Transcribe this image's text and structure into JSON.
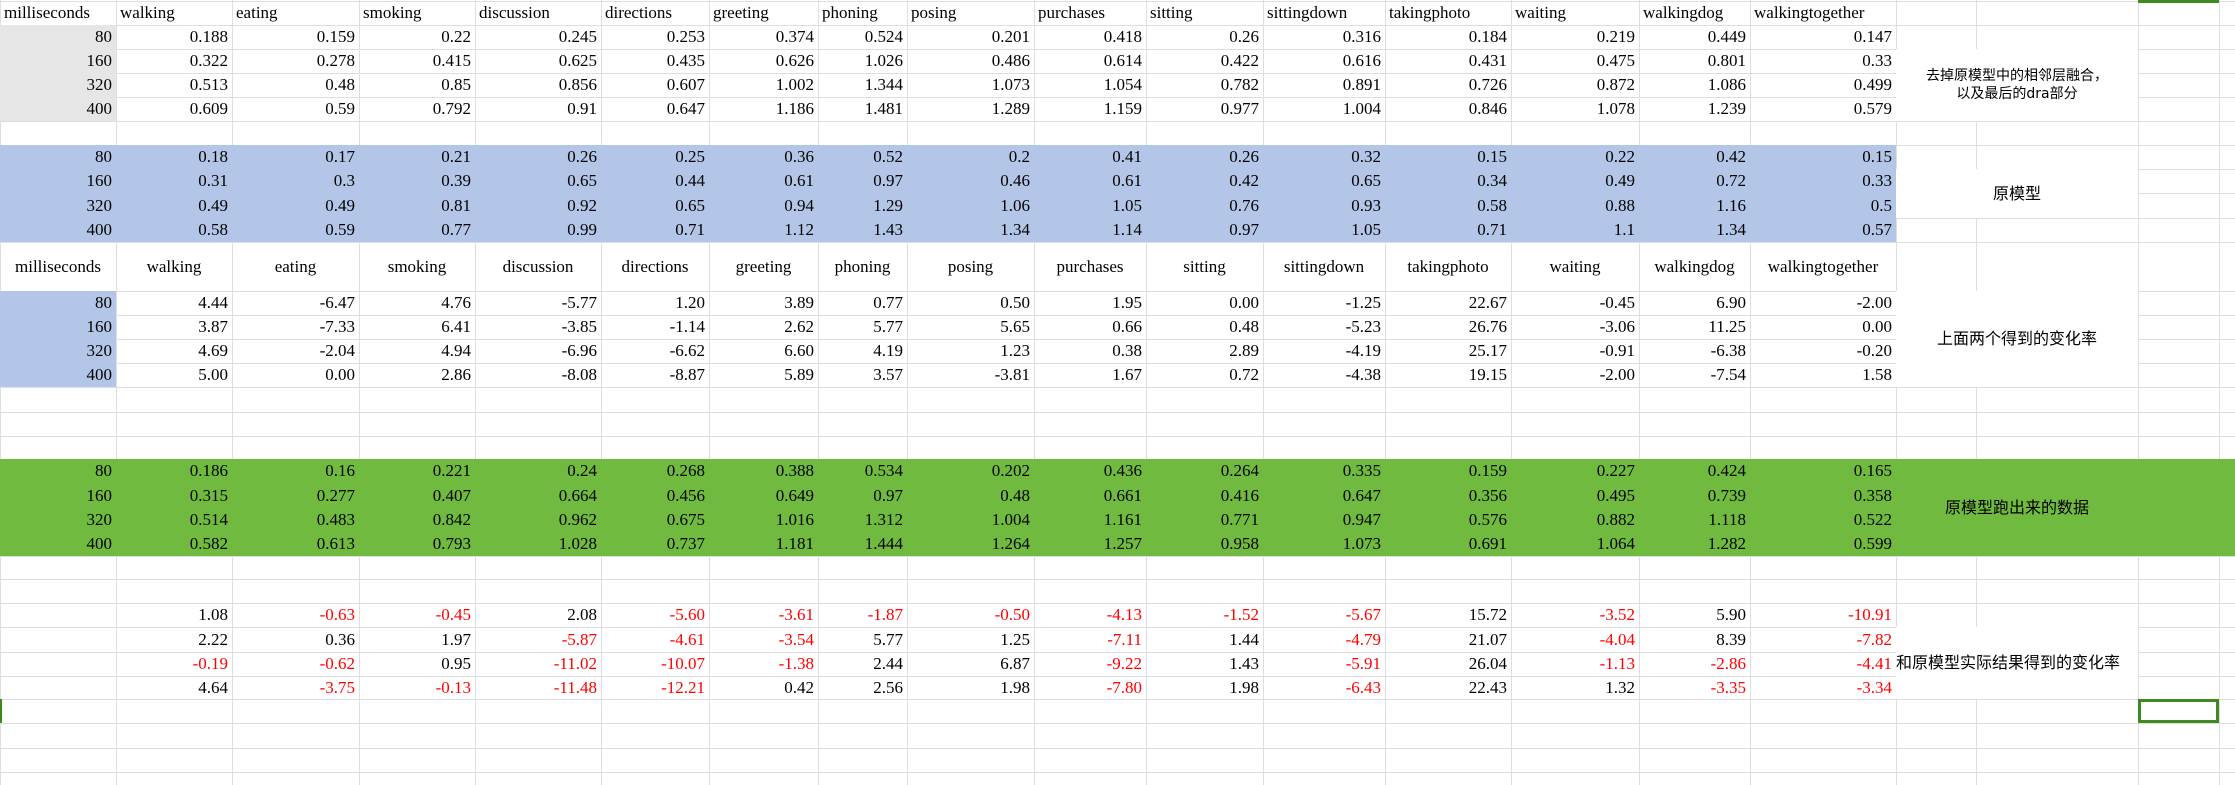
{
  "colors": {
    "grey": "#e6e6e6",
    "blue": "#b4c6e7",
    "green": "#70bb3f",
    "negative": "#ff0000",
    "selection": "#3f8a1f"
  },
  "headers": [
    "milliseconds",
    "walking",
    "eating",
    "smoking",
    "discussion",
    "directions",
    "greeting",
    "phoning",
    "posing",
    "purchases",
    "sitting",
    "sittingdown",
    "takingphoto",
    "waiting",
    "walkingdog",
    "walkingtogether"
  ],
  "row_labels": [
    "80",
    "160",
    "320",
    "400"
  ],
  "block1": [
    [
      "0.188",
      "0.159",
      "0.22",
      "0.245",
      "0.253",
      "0.374",
      "0.524",
      "0.201",
      "0.418",
      "0.26",
      "0.316",
      "0.184",
      "0.219",
      "0.449",
      "0.147"
    ],
    [
      "0.322",
      "0.278",
      "0.415",
      "0.625",
      "0.435",
      "0.626",
      "1.026",
      "0.486",
      "0.614",
      "0.422",
      "0.616",
      "0.431",
      "0.475",
      "0.801",
      "0.33"
    ],
    [
      "0.513",
      "0.48",
      "0.85",
      "0.856",
      "0.607",
      "1.002",
      "1.344",
      "1.073",
      "1.054",
      "0.782",
      "0.891",
      "0.726",
      "0.872",
      "1.086",
      "0.499"
    ],
    [
      "0.609",
      "0.59",
      "0.792",
      "0.91",
      "0.647",
      "1.186",
      "1.481",
      "1.289",
      "1.159",
      "0.977",
      "1.004",
      "0.846",
      "1.078",
      "1.239",
      "0.579"
    ]
  ],
  "block2": [
    [
      "0.18",
      "0.17",
      "0.21",
      "0.26",
      "0.25",
      "0.36",
      "0.52",
      "0.2",
      "0.41",
      "0.26",
      "0.32",
      "0.15",
      "0.22",
      "0.42",
      "0.15"
    ],
    [
      "0.31",
      "0.3",
      "0.39",
      "0.65",
      "0.44",
      "0.61",
      "0.97",
      "0.46",
      "0.61",
      "0.42",
      "0.65",
      "0.34",
      "0.49",
      "0.72",
      "0.33"
    ],
    [
      "0.49",
      "0.49",
      "0.81",
      "0.92",
      "0.65",
      "0.94",
      "1.29",
      "1.06",
      "1.05",
      "0.76",
      "0.93",
      "0.58",
      "0.88",
      "1.16",
      "0.5"
    ],
    [
      "0.58",
      "0.59",
      "0.77",
      "0.99",
      "0.71",
      "1.12",
      "1.43",
      "1.34",
      "1.14",
      "0.97",
      "1.05",
      "0.71",
      "1.1",
      "1.34",
      "0.57"
    ]
  ],
  "block3": [
    [
      "4.44",
      "-6.47",
      "4.76",
      "-5.77",
      "1.20",
      "3.89",
      "0.77",
      "0.50",
      "1.95",
      "0.00",
      "-1.25",
      "22.67",
      "-0.45",
      "6.90",
      "-2.00"
    ],
    [
      "3.87",
      "-7.33",
      "6.41",
      "-3.85",
      "-1.14",
      "2.62",
      "5.77",
      "5.65",
      "0.66",
      "0.48",
      "-5.23",
      "26.76",
      "-3.06",
      "11.25",
      "0.00"
    ],
    [
      "4.69",
      "-2.04",
      "4.94",
      "-6.96",
      "-6.62",
      "6.60",
      "4.19",
      "1.23",
      "0.38",
      "2.89",
      "-4.19",
      "25.17",
      "-0.91",
      "-6.38",
      "-0.20"
    ],
    [
      "5.00",
      "0.00",
      "2.86",
      "-8.08",
      "-8.87",
      "5.89",
      "3.57",
      "-3.81",
      "1.67",
      "0.72",
      "-4.38",
      "19.15",
      "-2.00",
      "-7.54",
      "1.58"
    ]
  ],
  "block4": [
    [
      "0.186",
      "0.16",
      "0.221",
      "0.24",
      "0.268",
      "0.388",
      "0.534",
      "0.202",
      "0.436",
      "0.264",
      "0.335",
      "0.159",
      "0.227",
      "0.424",
      "0.165"
    ],
    [
      "0.315",
      "0.277",
      "0.407",
      "0.664",
      "0.456",
      "0.649",
      "0.97",
      "0.48",
      "0.661",
      "0.416",
      "0.647",
      "0.356",
      "0.495",
      "0.739",
      "0.358"
    ],
    [
      "0.514",
      "0.483",
      "0.842",
      "0.962",
      "0.675",
      "1.016",
      "1.312",
      "1.004",
      "1.161",
      "0.771",
      "0.947",
      "0.576",
      "0.882",
      "1.118",
      "0.522"
    ],
    [
      "0.582",
      "0.613",
      "0.793",
      "1.028",
      "0.737",
      "1.181",
      "1.444",
      "1.264",
      "1.257",
      "0.958",
      "1.073",
      "0.691",
      "1.064",
      "1.282",
      "0.599"
    ]
  ],
  "block5": [
    [
      "1.08",
      "-0.63",
      "-0.45",
      "2.08",
      "-5.60",
      "-3.61",
      "-1.87",
      "-0.50",
      "-4.13",
      "-1.52",
      "-5.67",
      "15.72",
      "-3.52",
      "5.90",
      "-10.91"
    ],
    [
      "2.22",
      "0.36",
      "1.97",
      "-5.87",
      "-4.61",
      "-3.54",
      "5.77",
      "1.25",
      "-7.11",
      "1.44",
      "-4.79",
      "21.07",
      "-4.04",
      "8.39",
      "-7.82"
    ],
    [
      "-0.19",
      "-0.62",
      "0.95",
      "-11.02",
      "-10.07",
      "-1.38",
      "2.44",
      "6.87",
      "-9.22",
      "1.43",
      "-5.91",
      "26.04",
      "-1.13",
      "-2.86",
      "-4.41"
    ],
    [
      "4.64",
      "-3.75",
      "-0.13",
      "-11.48",
      "-12.21",
      "0.42",
      "2.56",
      "1.98",
      "-7.80",
      "1.98",
      "-6.43",
      "22.43",
      "1.32",
      "-3.35",
      "-3.34"
    ]
  ],
  "labels": {
    "block1_note": "去掉原模型中的相邻层融合，以及最后的dra部分",
    "block2_note": "原模型",
    "block3_note": "上面两个得到的变化率",
    "block4_note": "原模型跑出来的数据",
    "block5_note": "和原模型实际结果得到的变化率"
  }
}
